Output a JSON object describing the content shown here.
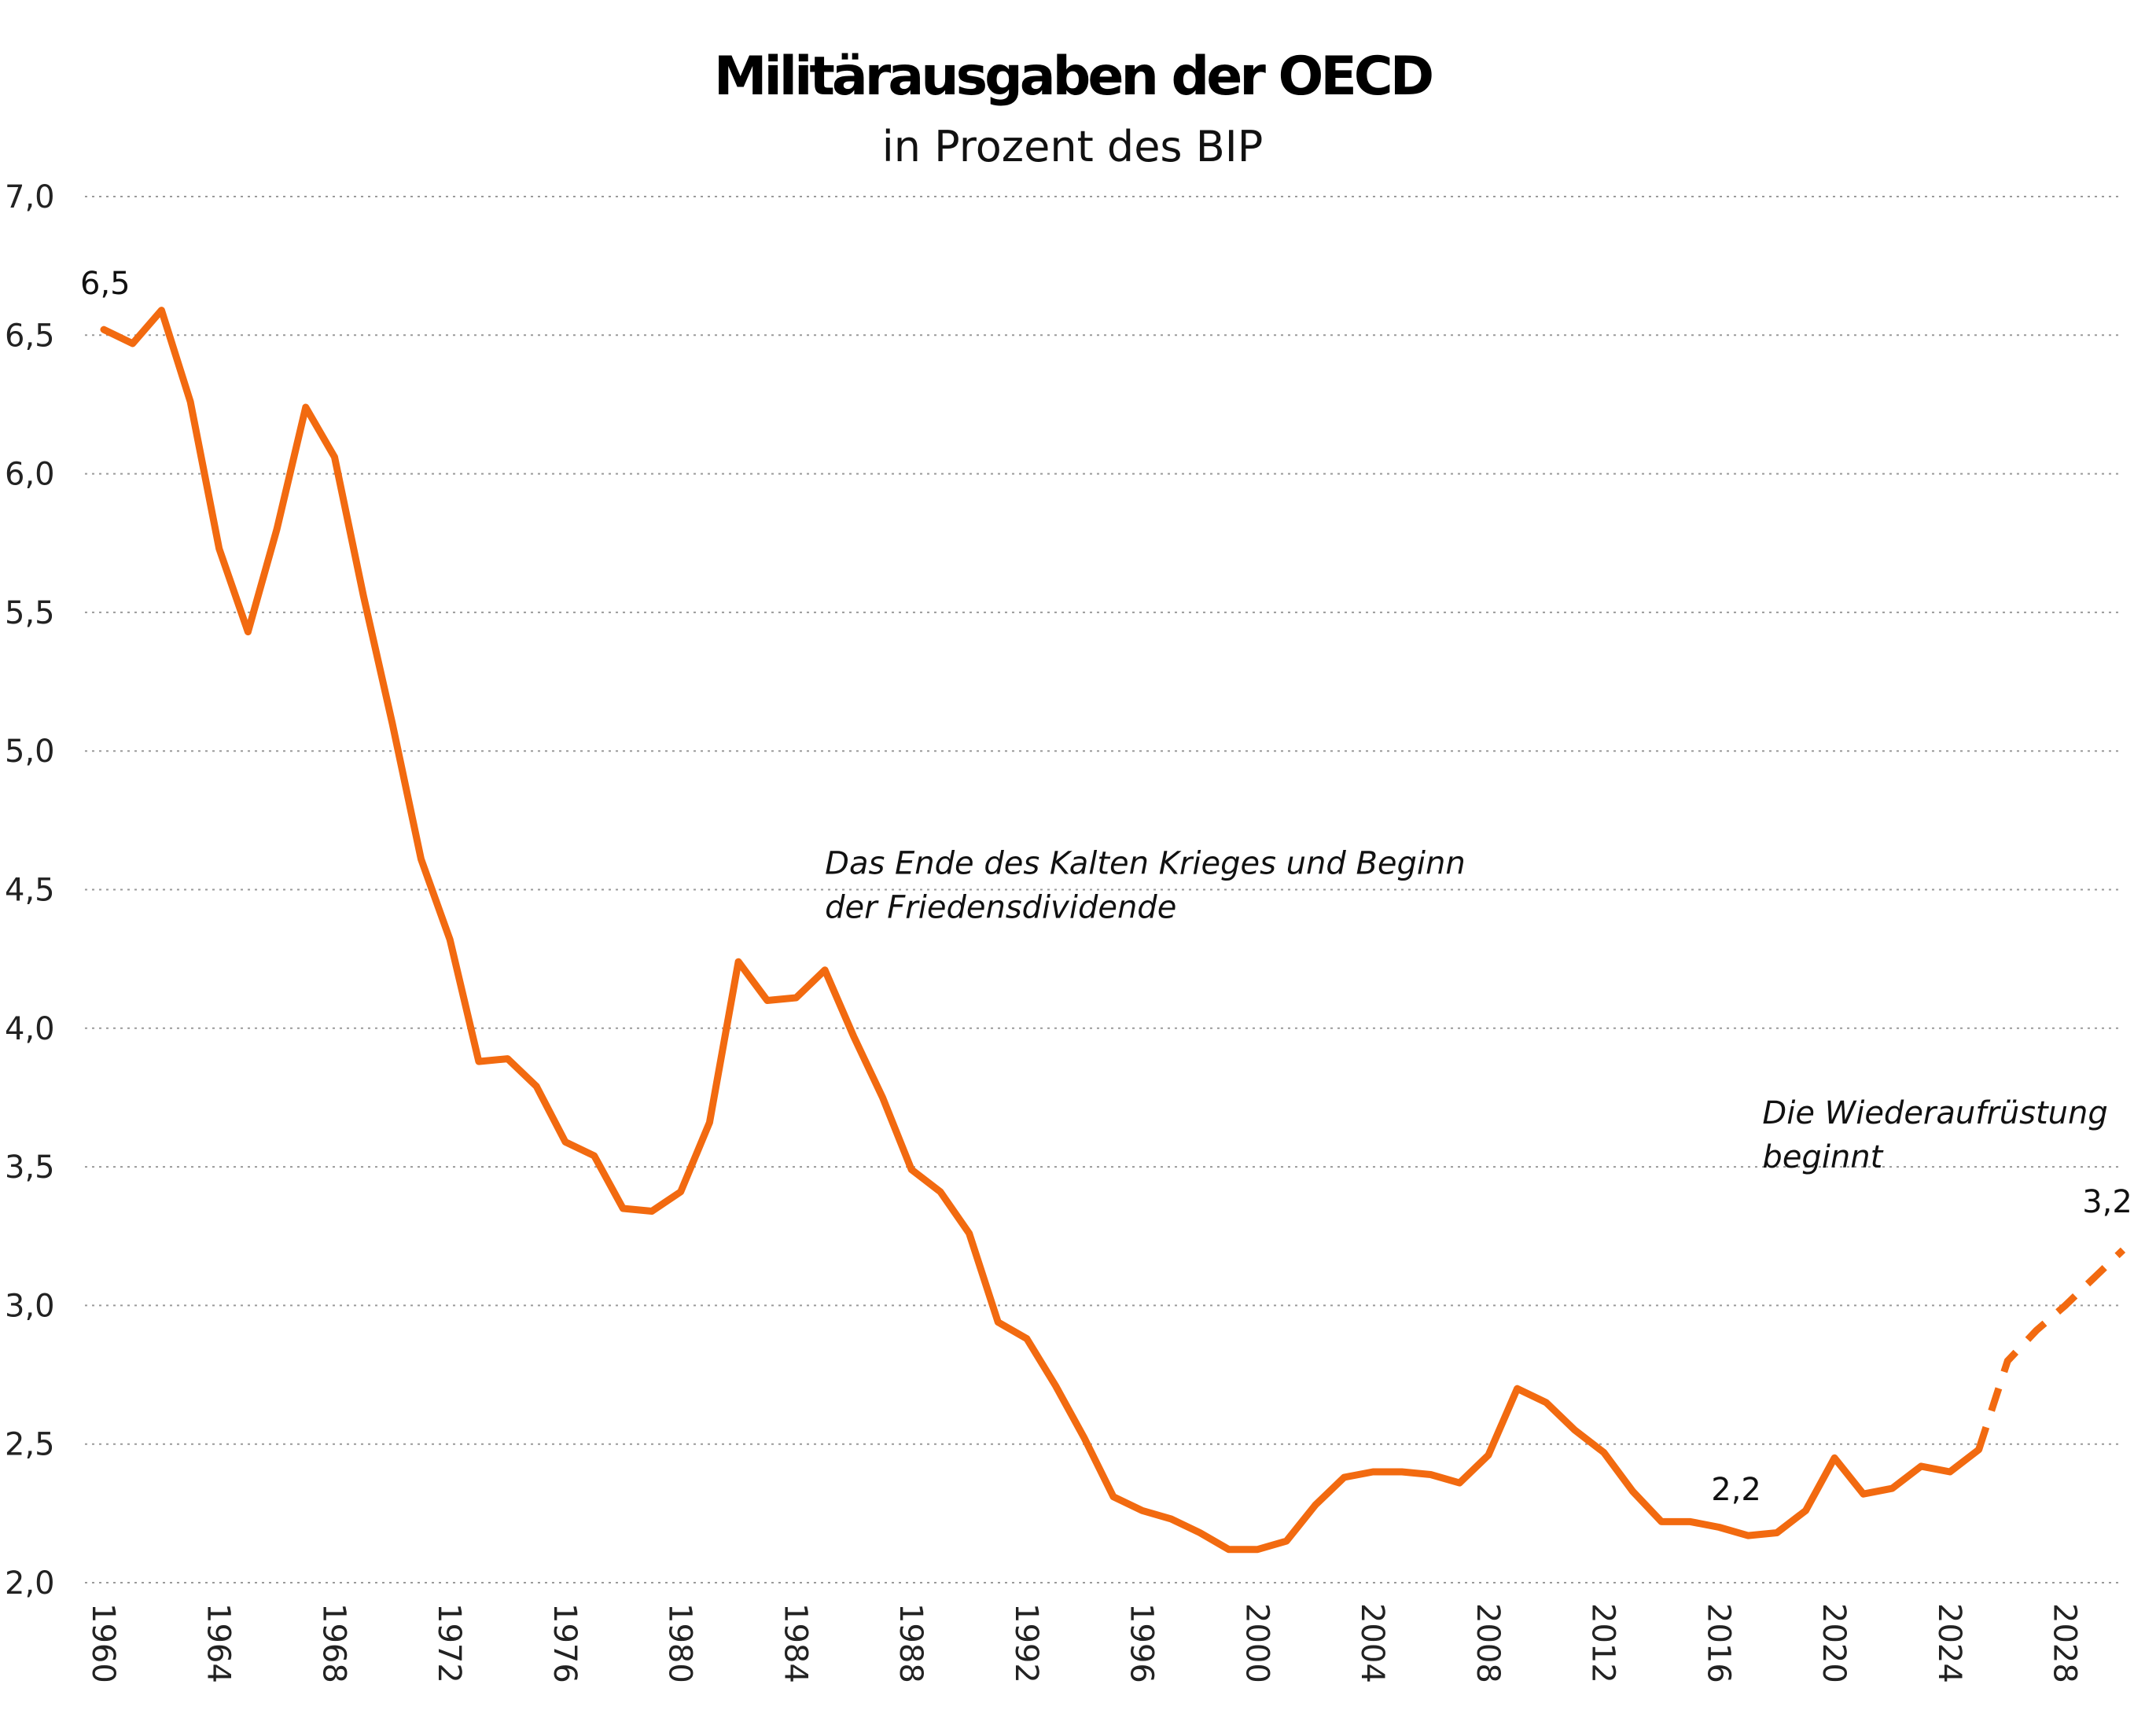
{
  "chart_data": {
    "type": "line",
    "title": "Militärausgaben der OECD",
    "subtitle": "in Prozent des BIP",
    "xlabel": "",
    "ylabel": "",
    "x_range": [
      1960,
      2030
    ],
    "ylim": [
      2.0,
      7.0
    ],
    "y_ticks": [
      "2,0",
      "2,5",
      "3,0",
      "3,5",
      "4,0",
      "4,5",
      "5,0",
      "5,5",
      "6,0",
      "6,5",
      "7,0"
    ],
    "y_tick_values": [
      2.0,
      2.5,
      3.0,
      3.5,
      4.0,
      4.5,
      5.0,
      5.5,
      6.0,
      6.5,
      7.0
    ],
    "x_ticks": [
      "1960",
      "1964",
      "1968",
      "1972",
      "1976",
      "1980",
      "1984",
      "1988",
      "1992",
      "1996",
      "2000",
      "2004",
      "2008",
      "2012",
      "2016",
      "2020",
      "2024",
      "2028"
    ],
    "x_tick_values": [
      1960,
      1964,
      1968,
      1972,
      1976,
      1980,
      1984,
      1988,
      1992,
      1996,
      2000,
      2004,
      2008,
      2012,
      2016,
      2020,
      2024,
      2028
    ],
    "grid": true,
    "series": [
      {
        "style": "solid",
        "color": "#f26a10",
        "x": [
          1960,
          1961,
          1962,
          1963,
          1964,
          1965,
          1966,
          1967,
          1968,
          1969,
          1970,
          1971,
          1972,
          1973,
          1974,
          1975,
          1976,
          1977,
          1978,
          1979,
          1980,
          1981,
          1982,
          1983,
          1984,
          1985,
          1986,
          1987,
          1988,
          1989,
          1990,
          1991,
          1992,
          1993,
          1994,
          1995,
          1996,
          1997,
          1998,
          1999,
          2000,
          2001,
          2002,
          2003,
          2004,
          2005,
          2006,
          2007,
          2008,
          2009,
          2010,
          2011,
          2012,
          2013,
          2014,
          2015,
          2016,
          2017,
          2018,
          2019,
          2020,
          2021,
          2022,
          2023,
          2024,
          2025
        ],
        "y": [
          6.52,
          6.47,
          6.59,
          6.26,
          5.73,
          5.43,
          5.8,
          6.24,
          6.06,
          5.56,
          5.1,
          4.61,
          4.32,
          3.88,
          3.89,
          3.79,
          3.59,
          3.54,
          3.35,
          3.34,
          3.41,
          3.66,
          4.24,
          4.1,
          4.11,
          4.21,
          3.97,
          3.75,
          3.49,
          3.41,
          3.26,
          2.94,
          2.88,
          2.71,
          2.52,
          2.31,
          2.26,
          2.23,
          2.18,
          2.12,
          2.12,
          2.15,
          2.28,
          2.38,
          2.4,
          2.4,
          2.39,
          2.36,
          2.46,
          2.7,
          2.65,
          2.55,
          2.47,
          2.33,
          2.22,
          2.22,
          2.2,
          2.17,
          2.18,
          2.26,
          2.45,
          2.32,
          2.34,
          2.42,
          2.4,
          2.48
        ]
      },
      {
        "style": "dashed",
        "color": "#f26a10",
        "x": [
          2025,
          2026,
          2027,
          2028,
          2029,
          2030
        ],
        "y": [
          2.48,
          2.8,
          2.91,
          3.0,
          3.1,
          3.2
        ]
      }
    ],
    "data_labels": [
      {
        "text": "6,5",
        "x": 1960,
        "y": 6.52
      },
      {
        "text": "2,2",
        "x": 2017,
        "y": 2.17
      },
      {
        "text": "3,2",
        "x": 2030,
        "y": 3.2
      }
    ],
    "annotations": [
      {
        "lines": [
          "Das Ende des Kalten Krieges und Beginn",
          "der Friedensdividende"
        ],
        "x": 1985,
        "y": 4.5
      },
      {
        "lines": [
          "Die Wiederaufrüstung",
          "beginnt"
        ],
        "x": 2017.5,
        "y": 3.6
      }
    ]
  }
}
